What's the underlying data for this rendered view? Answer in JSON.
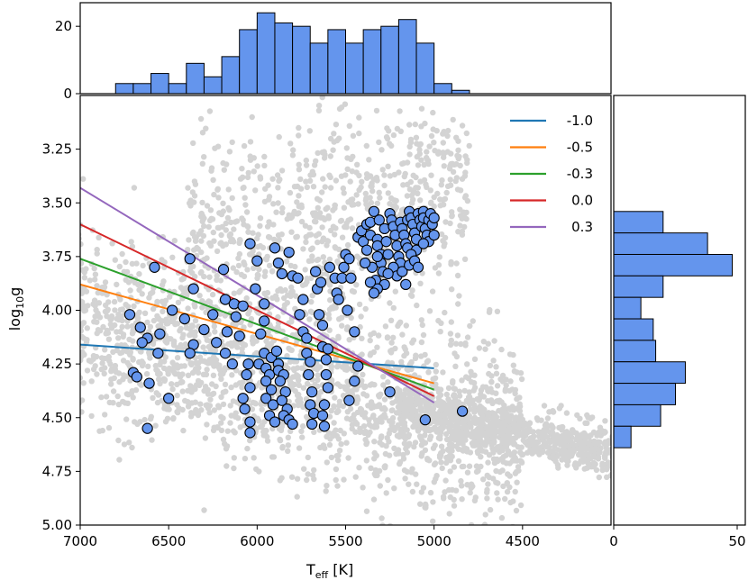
{
  "chart_data": {
    "type": "scatter",
    "description_axes": {
      "xlabel_main": "T",
      "xlabel_sub": "eff",
      "xlabel_unit": " [K]",
      "ylabel_main": "log",
      "ylabel_sub": "10",
      "ylabel_tail": "g"
    },
    "xlim": [
      7000,
      4000
    ],
    "ylim": [
      5.0,
      3.0
    ],
    "xticks": [
      7000,
      6500,
      6000,
      5500,
      5000,
      4500
    ],
    "xtick_labels": [
      "7000",
      "6500",
      "6000",
      "5500",
      "5000",
      "4500"
    ],
    "yticks": [
      3.25,
      3.5,
      3.75,
      4.0,
      4.25,
      4.5,
      4.75,
      5.0
    ],
    "ytick_labels": [
      "3.25",
      "3.50",
      "3.75",
      "4.00",
      "4.25",
      "4.50",
      "4.75",
      "5.00"
    ],
    "colors": {
      "background_points": "#d3d3d3",
      "sample_points": "#6495ed",
      "sample_edge": "#000000",
      "hist_fill": "#6495ed",
      "hist_edge": "#000000"
    },
    "lines": [
      {
        "label": "-1.0",
        "color": "#1f77b4",
        "x": [
          7000,
          5000
        ],
        "y": [
          4.16,
          4.27
        ]
      },
      {
        "label": "-0.5",
        "color": "#ff7f0e",
        "x": [
          7000,
          5000
        ],
        "y": [
          3.88,
          4.34
        ]
      },
      {
        "label": "-0.3",
        "color": "#2ca02c",
        "x": [
          7000,
          5000
        ],
        "y": [
          3.76,
          4.37
        ]
      },
      {
        "label": "0.0",
        "color": "#d62728",
        "x": [
          7000,
          5000
        ],
        "y": [
          3.6,
          4.4
        ]
      },
      {
        "label": "0.3",
        "color": "#9467bd",
        "x": [
          7000,
          5000
        ],
        "y": [
          3.43,
          4.43
        ]
      }
    ],
    "legend_labels": [
      "-1.0",
      "-0.5",
      "-0.3",
      "0.0",
      "0.3"
    ],
    "legend_location": "top-right",
    "top_hist": {
      "ylim": [
        0,
        27
      ],
      "yticks": [
        0,
        20
      ],
      "ytick_labels": [
        "0",
        "20"
      ],
      "bin_edges": [
        6800,
        6700,
        6600,
        6500,
        6400,
        6300,
        6200,
        6100,
        6000,
        5900,
        5800,
        5700,
        5600,
        5500,
        5400,
        5300,
        5200,
        5100,
        5000,
        4900,
        4800
      ],
      "counts": [
        3,
        3,
        6,
        3,
        9,
        5,
        11,
        19,
        24,
        21,
        20,
        15,
        19,
        15,
        19,
        20,
        22,
        15,
        3,
        1
      ]
    },
    "right_hist": {
      "xlim": [
        0,
        50
      ],
      "xticks": [
        0,
        50
      ],
      "xtick_labels": [
        "0",
        "50"
      ],
      "bin_edges": [
        3.54,
        3.64,
        3.74,
        3.84,
        3.94,
        4.04,
        4.14,
        4.24,
        4.34,
        4.44,
        4.54,
        4.64
      ],
      "counts": [
        20,
        38,
        48,
        20,
        11,
        16,
        17,
        29,
        25,
        19,
        7
      ]
    },
    "sample_points": [
      [
        6580,
        3.8
      ],
      [
        6720,
        4.02
      ],
      [
        6620,
        4.13
      ],
      [
        6660,
        4.08
      ],
      [
        6550,
        4.11
      ],
      [
        6560,
        4.2
      ],
      [
        6700,
        4.29
      ],
      [
        6680,
        4.31
      ],
      [
        6610,
        4.34
      ],
      [
        6500,
        4.41
      ],
      [
        6650,
        4.15
      ],
      [
        6620,
        4.55
      ],
      [
        6480,
        4.0
      ],
      [
        6380,
        3.76
      ],
      [
        6360,
        3.9
      ],
      [
        6410,
        4.04
      ],
      [
        6360,
        4.16
      ],
      [
        6380,
        4.2
      ],
      [
        6300,
        4.09
      ],
      [
        6250,
        4.02
      ],
      [
        6190,
        3.81
      ],
      [
        6180,
        3.95
      ],
      [
        6170,
        4.1
      ],
      [
        6230,
        4.15
      ],
      [
        6180,
        4.2
      ],
      [
        6130,
        3.97
      ],
      [
        6120,
        4.03
      ],
      [
        6140,
        4.25
      ],
      [
        6100,
        4.12
      ],
      [
        6080,
        3.98
      ],
      [
        6050,
        4.25
      ],
      [
        6060,
        4.3
      ],
      [
        6040,
        4.36
      ],
      [
        6080,
        4.41
      ],
      [
        6040,
        4.52
      ],
      [
        6040,
        4.57
      ],
      [
        6070,
        4.46
      ],
      [
        6040,
        3.69
      ],
      [
        6000,
        3.77
      ],
      [
        6010,
        3.9
      ],
      [
        5960,
        3.97
      ],
      [
        5960,
        4.05
      ],
      [
        5980,
        4.11
      ],
      [
        5960,
        4.2
      ],
      [
        5990,
        4.25
      ],
      [
        5950,
        4.27
      ],
      [
        5930,
        4.3
      ],
      [
        5950,
        4.33
      ],
      [
        5920,
        4.37
      ],
      [
        5950,
        4.41
      ],
      [
        5910,
        4.44
      ],
      [
        5930,
        4.49
      ],
      [
        5900,
        4.52
      ],
      [
        5920,
        4.22
      ],
      [
        5890,
        4.19
      ],
      [
        5880,
        4.25
      ],
      [
        5880,
        4.28
      ],
      [
        5850,
        4.3
      ],
      [
        5870,
        4.33
      ],
      [
        5840,
        4.38
      ],
      [
        5860,
        4.42
      ],
      [
        5830,
        4.46
      ],
      [
        5850,
        4.49
      ],
      [
        5820,
        4.51
      ],
      [
        5800,
        4.53
      ],
      [
        5880,
        3.78
      ],
      [
        5860,
        3.83
      ],
      [
        5900,
        3.71
      ],
      [
        5820,
        3.73
      ],
      [
        5800,
        3.84
      ],
      [
        5770,
        3.85
      ],
      [
        5740,
        3.95
      ],
      [
        5760,
        4.02
      ],
      [
        5740,
        4.1
      ],
      [
        5720,
        4.13
      ],
      [
        5720,
        4.2
      ],
      [
        5700,
        4.24
      ],
      [
        5710,
        4.3
      ],
      [
        5690,
        4.38
      ],
      [
        5700,
        4.44
      ],
      [
        5680,
        4.48
      ],
      [
        5690,
        4.53
      ],
      [
        5660,
        3.9
      ],
      [
        5670,
        3.82
      ],
      [
        5640,
        3.87
      ],
      [
        5650,
        4.02
      ],
      [
        5630,
        4.07
      ],
      [
        5630,
        4.17
      ],
      [
        5610,
        4.23
      ],
      [
        5610,
        4.3
      ],
      [
        5600,
        4.36
      ],
      [
        5620,
        4.44
      ],
      [
        5630,
        4.49
      ],
      [
        5620,
        4.54
      ],
      [
        5600,
        4.18
      ],
      [
        5590,
        3.8
      ],
      [
        5560,
        3.85
      ],
      [
        5550,
        3.92
      ],
      [
        5540,
        3.95
      ],
      [
        5520,
        3.85
      ],
      [
        5510,
        3.8
      ],
      [
        5500,
        3.74
      ],
      [
        5480,
        3.76
      ],
      [
        5470,
        3.85
      ],
      [
        5490,
        4.0
      ],
      [
        5480,
        4.42
      ],
      [
        5450,
        4.33
      ],
      [
        5430,
        4.26
      ],
      [
        5450,
        4.1
      ],
      [
        5430,
        3.66
      ],
      [
        5410,
        3.63
      ],
      [
        5400,
        3.68
      ],
      [
        5380,
        3.72
      ],
      [
        5380,
        3.6
      ],
      [
        5360,
        3.59
      ],
      [
        5360,
        3.65
      ],
      [
        5340,
        3.54
      ],
      [
        5320,
        3.67
      ],
      [
        5310,
        3.58
      ],
      [
        5320,
        3.7
      ],
      [
        5300,
        3.74
      ],
      [
        5300,
        3.78
      ],
      [
        5290,
        3.82
      ],
      [
        5330,
        3.86
      ],
      [
        5350,
        3.8
      ],
      [
        5280,
        3.62
      ],
      [
        5270,
        3.68
      ],
      [
        5260,
        3.74
      ],
      [
        5250,
        3.55
      ],
      [
        5240,
        3.58
      ],
      [
        5230,
        3.61
      ],
      [
        5220,
        3.65
      ],
      [
        5210,
        3.7
      ],
      [
        5200,
        3.75
      ],
      [
        5190,
        3.78
      ],
      [
        5190,
        3.59
      ],
      [
        5180,
        3.62
      ],
      [
        5170,
        3.65
      ],
      [
        5160,
        3.69
      ],
      [
        5150,
        3.71
      ],
      [
        5150,
        3.58
      ],
      [
        5140,
        3.54
      ],
      [
        5130,
        3.57
      ],
      [
        5120,
        3.6
      ],
      [
        5110,
        3.64
      ],
      [
        5100,
        3.67
      ],
      [
        5100,
        3.72
      ],
      [
        5090,
        3.55
      ],
      [
        5080,
        3.58
      ],
      [
        5070,
        3.61
      ],
      [
        5060,
        3.54
      ],
      [
        5060,
        3.57
      ],
      [
        5050,
        3.62
      ],
      [
        5040,
        3.65
      ],
      [
        5030,
        3.58
      ],
      [
        5020,
        3.55
      ],
      [
        5010,
        3.6
      ],
      [
        5000,
        3.57
      ],
      [
        5230,
        3.8
      ],
      [
        5210,
        3.84
      ],
      [
        5180,
        3.82
      ],
      [
        5160,
        3.88
      ],
      [
        5140,
        3.79
      ],
      [
        5280,
        3.88
      ],
      [
        5260,
        3.83
      ],
      [
        5320,
        3.9
      ],
      [
        5340,
        3.92
      ],
      [
        5360,
        3.87
      ],
      [
        5250,
        4.38
      ],
      [
        5050,
        4.51
      ],
      [
        4840,
        4.47
      ],
      [
        5030,
        3.68
      ],
      [
        5000,
        3.65
      ],
      [
        5130,
        3.74
      ],
      [
        5110,
        3.77
      ],
      [
        5090,
        3.8
      ],
      [
        5060,
        3.69
      ],
      [
        5320,
        3.75
      ],
      [
        5390,
        3.78
      ]
    ]
  }
}
